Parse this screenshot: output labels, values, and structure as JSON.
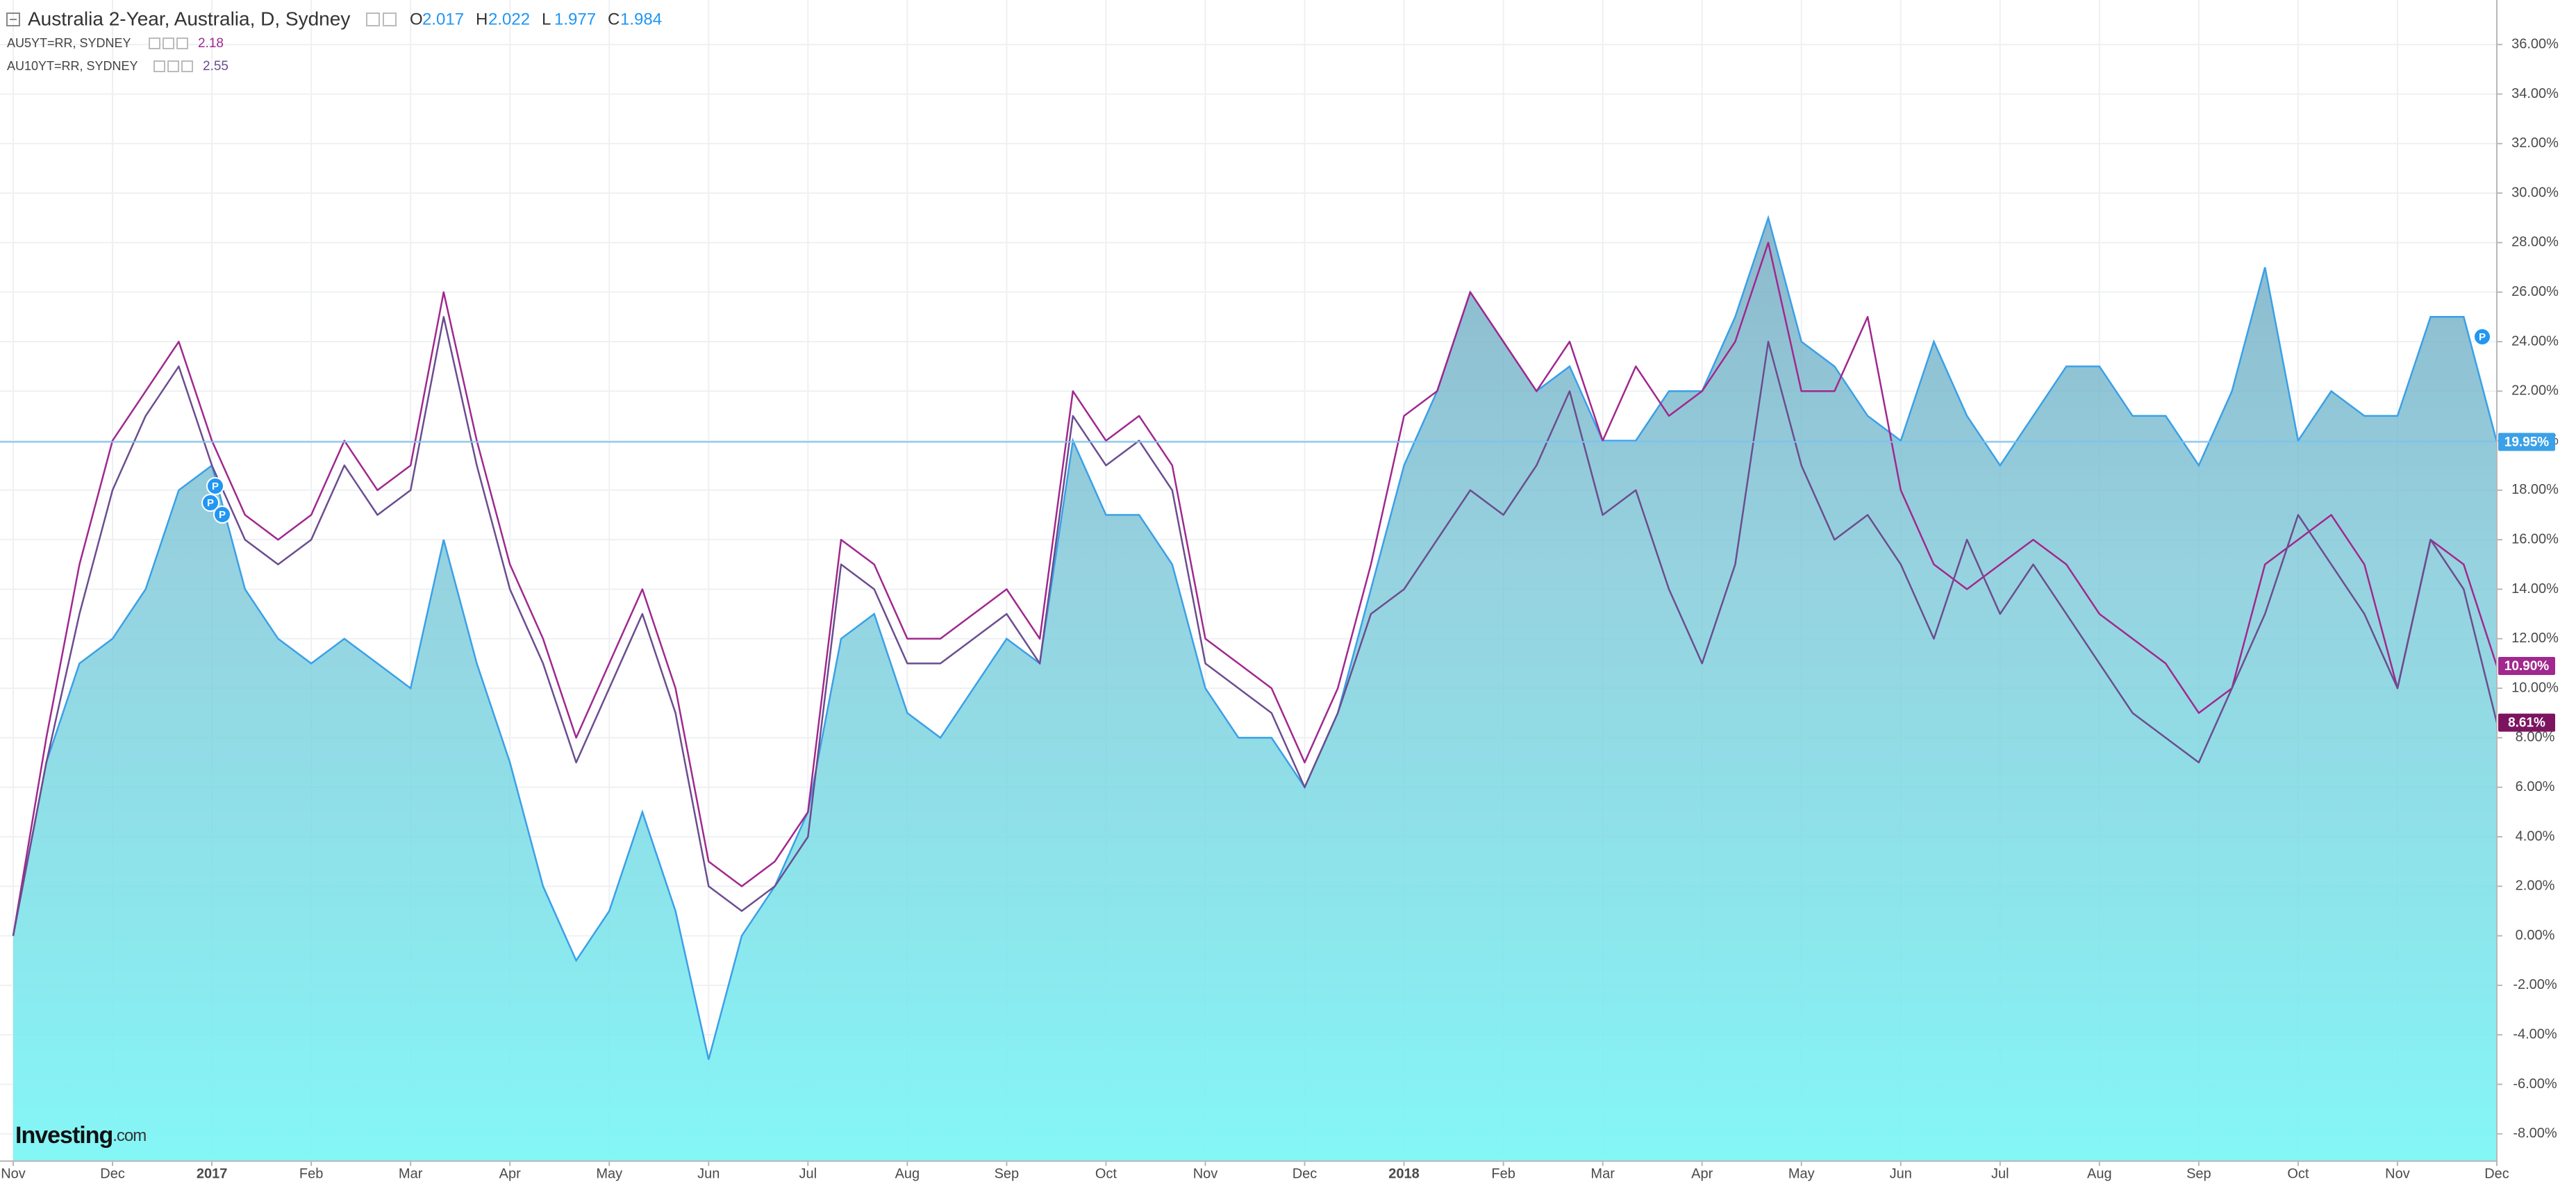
{
  "chart_data": {
    "type": "area",
    "title": "Australia 2-Year, Australia, D, Sydney",
    "ohlc": [
      {
        "label": "O",
        "value": 2.017
      },
      {
        "label": "H",
        "value": 2.022
      },
      {
        "label": "L",
        "value": 1.977
      },
      {
        "label": "C",
        "value": 1.984
      }
    ],
    "event_label": "P",
    "watermark": "Investing",
    "watermark_suffix": ".com",
    "grid": true,
    "categories": [
      "Nov",
      null,
      null,
      "Dec",
      null,
      null,
      "2017",
      null,
      null,
      "Feb",
      null,
      null,
      "Mar",
      null,
      null,
      "Apr",
      null,
      null,
      "May",
      null,
      null,
      "Jun",
      null,
      null,
      "Jul",
      null,
      null,
      "Aug",
      null,
      null,
      "Sep",
      null,
      null,
      "Oct",
      null,
      null,
      "Nov",
      null,
      null,
      "Dec",
      null,
      null,
      "2018",
      null,
      null,
      "Feb",
      null,
      null,
      "Mar",
      null,
      null,
      "Apr",
      null,
      null,
      "May",
      null,
      null,
      "Jun",
      null,
      null,
      "Jul",
      null,
      null,
      "Aug",
      null,
      null,
      "Sep",
      null,
      null,
      "Oct",
      null,
      null,
      "Nov",
      null,
      null,
      "Dec"
    ],
    "series": [
      {
        "name": "Australia 2-Year",
        "type": "area",
        "color": "#3aa0e8",
        "price_line": true,
        "last_label": "19.95%",
        "values": [
          0,
          7,
          11,
          12,
          14,
          18,
          19,
          14,
          12,
          11,
          12,
          11,
          10,
          16,
          11,
          7,
          2,
          -1,
          1,
          5,
          1,
          -5,
          0,
          2,
          5,
          12,
          13,
          9,
          8,
          10,
          12,
          11,
          20,
          17,
          17,
          15,
          10,
          8,
          8,
          6,
          9,
          14,
          19,
          22,
          26,
          24,
          22,
          23,
          20,
          20,
          22,
          22,
          25,
          29,
          24,
          23,
          21,
          20,
          24,
          21,
          19,
          21,
          23,
          23,
          21,
          21,
          19,
          22,
          27,
          20,
          22,
          21,
          21,
          25,
          25,
          19.95
        ]
      },
      {
        "name": "AU5YT=RR, SYDNEY",
        "type": "line",
        "color": "#a0288e",
        "legend_value": 2.18,
        "last_label": "10.90%",
        "values": [
          0,
          8,
          15,
          20,
          22,
          24,
          20,
          17,
          16,
          17,
          20,
          18,
          19,
          26,
          20,
          15,
          12,
          8,
          11,
          14,
          10,
          3,
          2,
          3,
          5,
          16,
          15,
          12,
          12,
          13,
          14,
          12,
          22,
          20,
          21,
          19,
          12,
          11,
          10,
          7,
          10,
          15,
          21,
          22,
          26,
          24,
          22,
          24,
          20,
          23,
          21,
          22,
          24,
          28,
          22,
          22,
          25,
          18,
          15,
          14,
          15,
          16,
          15,
          13,
          12,
          11,
          9,
          10,
          15,
          16,
          17,
          15,
          10,
          16,
          15,
          10.9
        ]
      },
      {
        "name": "AU10YT=RR, SYDNEY",
        "type": "line",
        "color": "#6b4d8f",
        "tag_color": "#7d1460",
        "legend_value": 2.55,
        "last_label": "8.61%",
        "values": [
          0,
          7,
          13,
          18,
          21,
          23,
          19,
          16,
          15,
          16,
          19,
          17,
          18,
          25,
          19,
          14,
          11,
          7,
          10,
          13,
          9,
          2,
          1,
          2,
          4,
          15,
          14,
          11,
          11,
          12,
          13,
          11,
          21,
          19,
          20,
          18,
          11,
          10,
          9,
          6,
          9,
          13,
          14,
          16,
          18,
          17,
          19,
          22,
          17,
          18,
          14,
          11,
          15,
          24,
          19,
          16,
          17,
          15,
          12,
          16,
          13,
          15,
          13,
          11,
          9,
          8,
          7,
          10,
          13,
          17,
          15,
          13,
          10,
          16,
          14,
          8.61
        ]
      }
    ],
    "ylim": [
      -9.1,
      37.8
    ],
    "yticks": [
      {
        "value": -8,
        "label": "-8.00%"
      },
      {
        "value": -6,
        "label": "-6.00%"
      },
      {
        "value": -4,
        "label": "-4.00%"
      },
      {
        "value": -2,
        "label": "-2.00%"
      },
      {
        "value": 0,
        "label": "0.00%"
      },
      {
        "value": 2,
        "label": "2.00%"
      },
      {
        "value": 4,
        "label": "4.00%"
      },
      {
        "value": 6,
        "label": "6.00%"
      },
      {
        "value": 8,
        "label": "8.00%"
      },
      {
        "value": 10,
        "label": "10.00%"
      },
      {
        "value": 12,
        "label": "12.00%"
      },
      {
        "value": 14,
        "label": "14.00%"
      },
      {
        "value": 16,
        "label": "16.00%"
      },
      {
        "value": 18,
        "label": "18.00%"
      },
      {
        "value": 20,
        "label": "20.00%"
      },
      {
        "value": 22,
        "label": "22.00%"
      },
      {
        "value": 24,
        "label": "24.00%"
      },
      {
        "value": 26,
        "label": "26.00%"
      },
      {
        "value": 28,
        "label": "28.00%"
      },
      {
        "value": 30,
        "label": "30.00%"
      },
      {
        "value": 32,
        "label": "32.00%"
      },
      {
        "value": 34,
        "label": "34.00%"
      },
      {
        "value": 36,
        "label": "36.00%"
      }
    ]
  }
}
